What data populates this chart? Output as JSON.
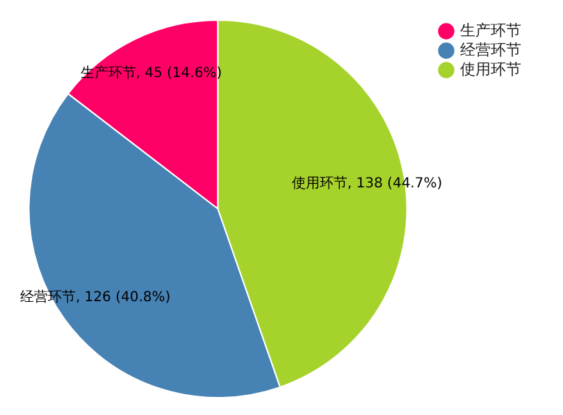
{
  "chart_data": {
    "type": "pie",
    "categories": [
      "生产环节",
      "经营环节",
      "使用环节"
    ],
    "values": [
      45,
      126,
      138
    ],
    "colors": [
      "#ff0066",
      "#4682b4",
      "#a6d22c"
    ],
    "value_labels": [
      "生产环节, 45 (14.6%)",
      "经营环节, 126 (40.8%)",
      "使用环节, 138 (44.7%)"
    ],
    "legend": "top right"
  }
}
